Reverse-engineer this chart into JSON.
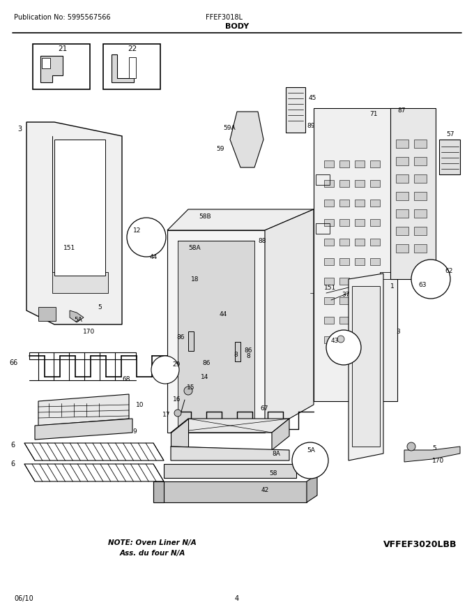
{
  "title": "BODY",
  "pub_no": "Publication No: 5995567566",
  "model": "FFEF3018L",
  "variant": "VFFEF3020LBB",
  "date": "06/10",
  "page": "4",
  "note_line1": "NOTE: Oven Liner N/A",
  "note_line2": "Ass. du four N/A",
  "bg_color": "#ffffff",
  "fig_w": 6.8,
  "fig_h": 8.8,
  "dpi": 100
}
